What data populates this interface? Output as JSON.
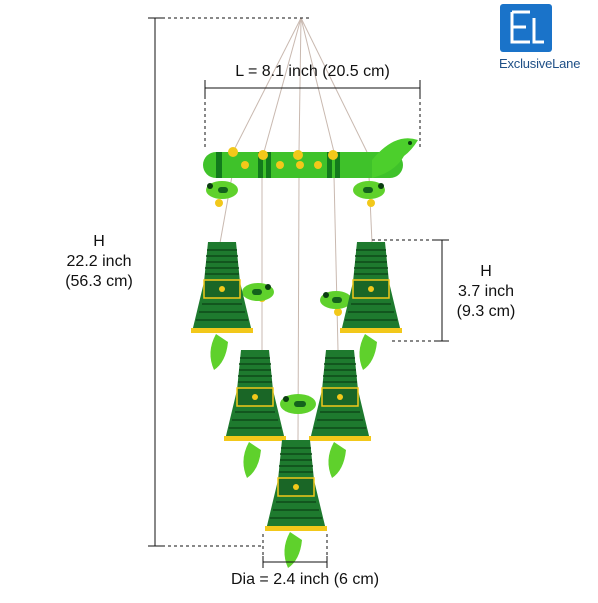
{
  "brand": {
    "name": "ExclusiveLane",
    "mark": "EL"
  },
  "dimensions": {
    "length": "L = 8.1 inch (20.5 cm)",
    "height_total": {
      "label": "H",
      "inch": "22.2 inch",
      "cm": "(56.3 cm)"
    },
    "height_bell": {
      "label": "H",
      "inch": "3.7 inch",
      "cm": "(9.3 cm)"
    },
    "diameter": "Dia = 2.4 inch (6 cm)"
  },
  "colors": {
    "bell_green": "#1e7a2e",
    "parrot_green": "#5fd12c",
    "flute_green": "#3fc22a",
    "yellow_dot": "#f2c81a",
    "brand_blue": "#1a73c9"
  }
}
